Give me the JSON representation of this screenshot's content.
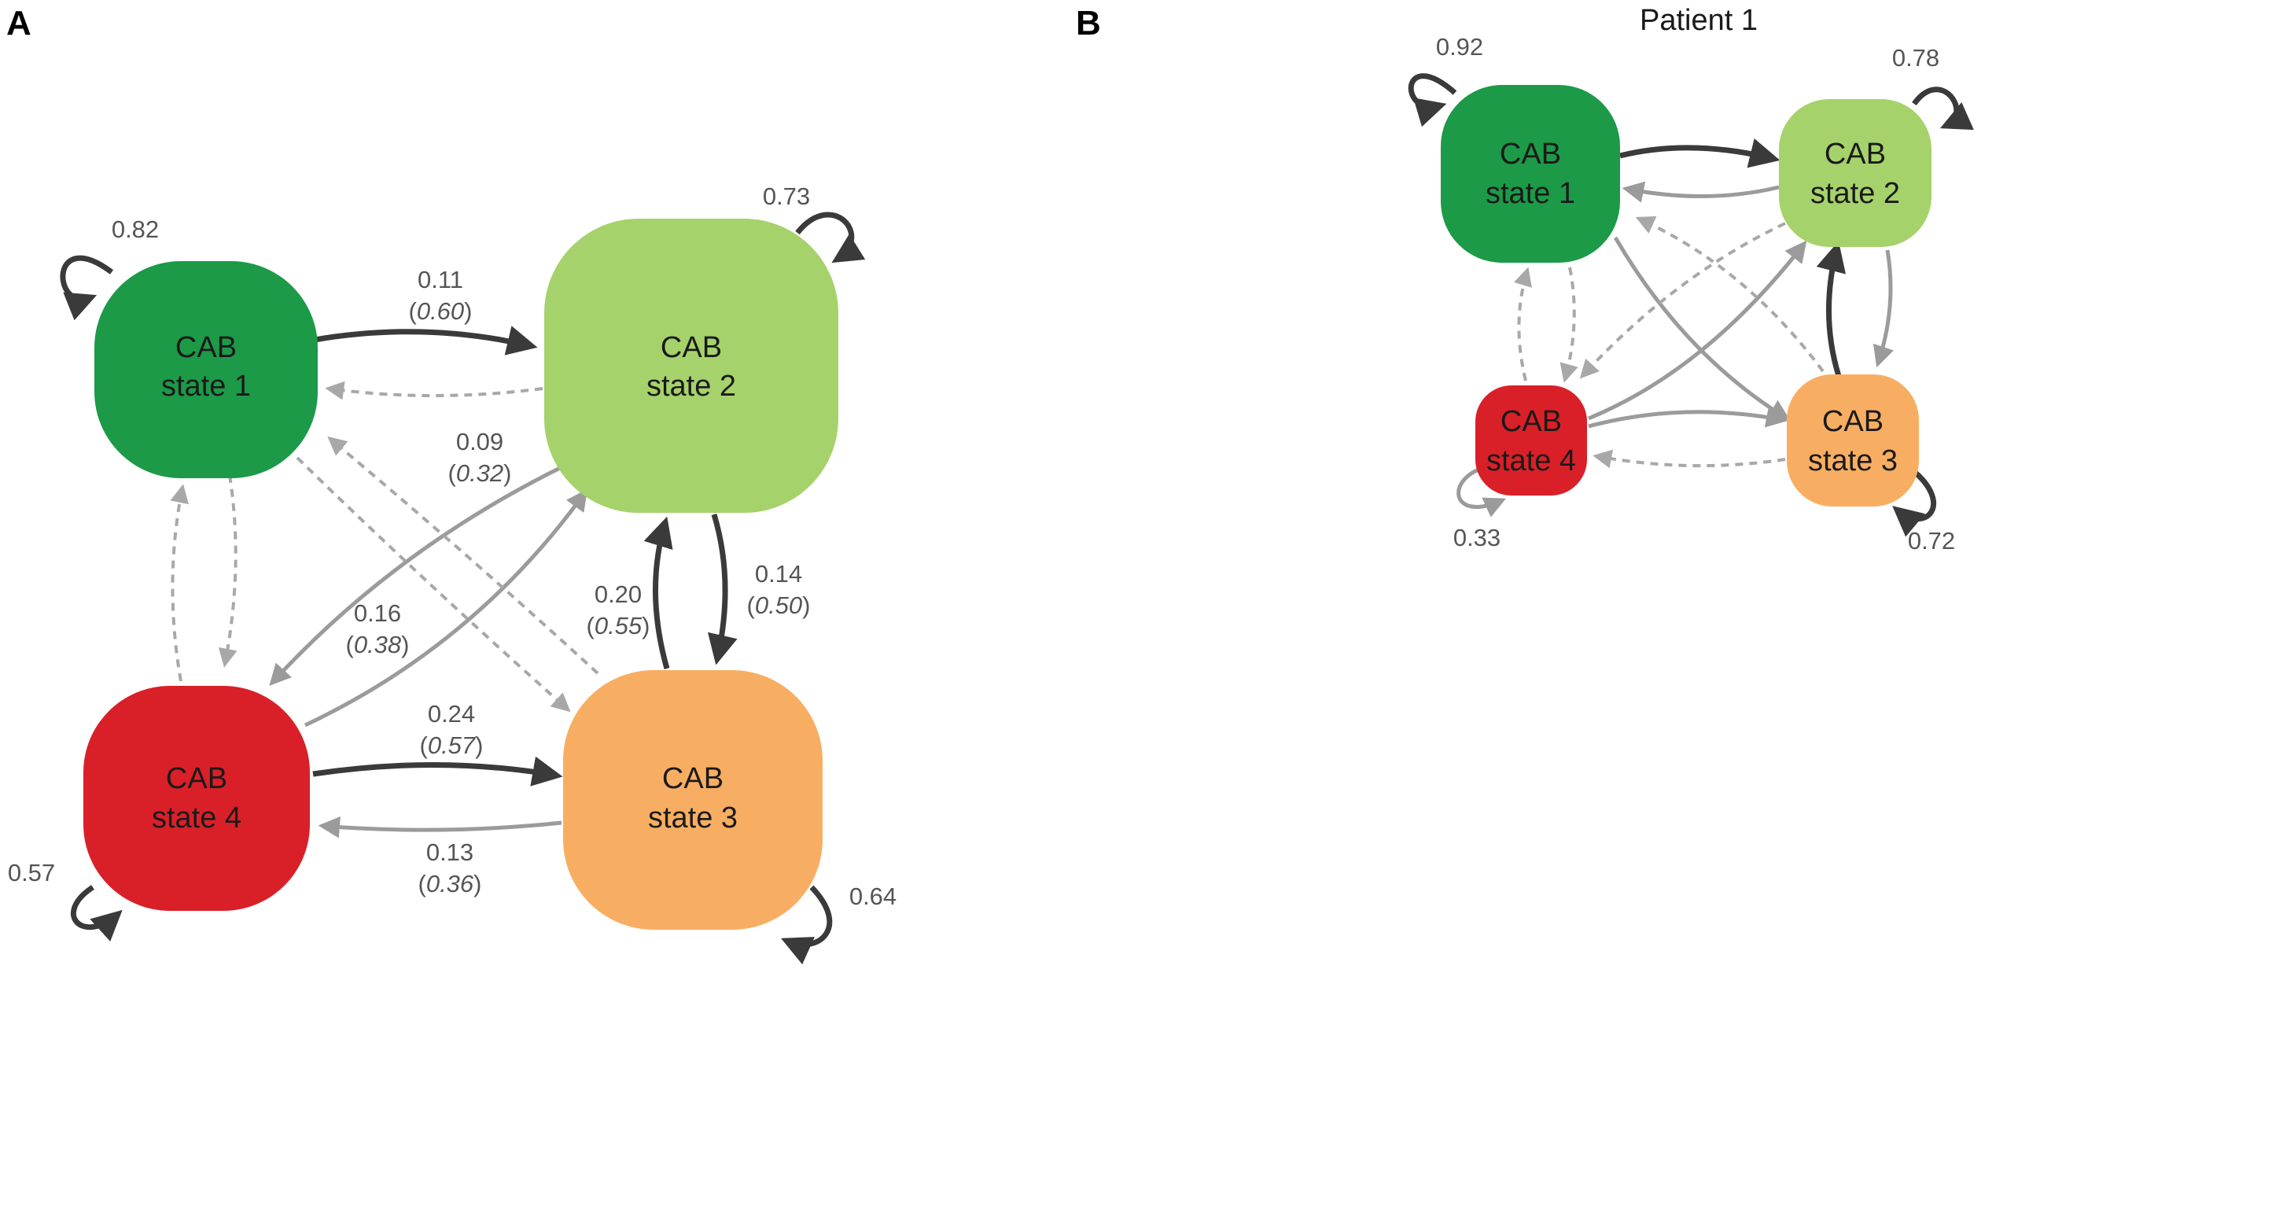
{
  "colors": {
    "state1": "#1c9a47",
    "state2": "#a6d26b",
    "state3": "#f8ae62",
    "state4": "#d92028",
    "edge_strong": "#3a3a3a",
    "edge_weak": "#9b9b9b"
  },
  "panel_a": {
    "letter": "A",
    "nodes": [
      {
        "id": "s1",
        "line1": "CAB",
        "line2": "state 1",
        "color": "state1"
      },
      {
        "id": "s2",
        "line1": "CAB",
        "line2": "state 2",
        "color": "state2"
      },
      {
        "id": "s3",
        "line1": "CAB",
        "line2": "state 3",
        "color": "state3"
      },
      {
        "id": "s4",
        "line1": "CAB",
        "line2": "state 4",
        "color": "state4"
      }
    ],
    "self_loops": [
      {
        "state": "s1",
        "label": "0.82"
      },
      {
        "state": "s2",
        "label": "0.73"
      },
      {
        "state": "s3",
        "label": "0.64"
      },
      {
        "state": "s4",
        "label": "0.57"
      }
    ],
    "edges": [
      {
        "from": "s1",
        "to": "s2",
        "label": "0.11",
        "sublabel": "0.60",
        "style": "strong"
      },
      {
        "from": "s2",
        "to": "s1",
        "style": "dashed"
      },
      {
        "from": "s2",
        "to": "s4",
        "label": "0.09",
        "sublabel": "0.32",
        "style": "weak"
      },
      {
        "from": "s4",
        "to": "s2",
        "label": "0.16",
        "sublabel": "0.38",
        "style": "weak"
      },
      {
        "from": "s2",
        "to": "s3",
        "label": "0.14",
        "sublabel": "0.50",
        "style": "strong"
      },
      {
        "from": "s3",
        "to": "s2",
        "label": "0.20",
        "sublabel": "0.55",
        "style": "strong"
      },
      {
        "from": "s4",
        "to": "s3",
        "label": "0.24",
        "sublabel": "0.57",
        "style": "strong"
      },
      {
        "from": "s3",
        "to": "s4",
        "label": "0.13",
        "sublabel": "0.36",
        "style": "weak"
      },
      {
        "from": "s1",
        "to": "s3",
        "style": "dashed"
      },
      {
        "from": "s3",
        "to": "s1",
        "style": "dashed"
      },
      {
        "from": "s1",
        "to": "s4",
        "style": "dashed"
      },
      {
        "from": "s4",
        "to": "s1",
        "style": "dashed"
      }
    ]
  },
  "panel_b": {
    "letter": "B",
    "title": "Patient 1",
    "nodes": [
      {
        "id": "s1",
        "line1": "CAB",
        "line2": "state 1",
        "color": "state1"
      },
      {
        "id": "s2",
        "line1": "CAB",
        "line2": "state 2",
        "color": "state2"
      },
      {
        "id": "s3",
        "line1": "CAB",
        "line2": "state 3",
        "color": "state3"
      },
      {
        "id": "s4",
        "line1": "CAB",
        "line2": "state 4",
        "color": "state4"
      }
    ],
    "self_loops": [
      {
        "state": "s1",
        "label": "0.92"
      },
      {
        "state": "s2",
        "label": "0.78"
      },
      {
        "state": "s3",
        "label": "0.72"
      },
      {
        "state": "s4",
        "label": "0.33"
      }
    ],
    "edges": [
      {
        "from": "s1",
        "to": "s2",
        "style": "strong"
      },
      {
        "from": "s2",
        "to": "s1",
        "style": "weak"
      },
      {
        "from": "s1",
        "to": "s3",
        "style": "weak"
      },
      {
        "from": "s4",
        "to": "s2",
        "style": "weak"
      },
      {
        "from": "s2",
        "to": "s4",
        "style": "dashed"
      },
      {
        "from": "s3",
        "to": "s1",
        "style": "dashed"
      },
      {
        "from": "s2",
        "to": "s3",
        "style": "weak"
      },
      {
        "from": "s3",
        "to": "s2",
        "style": "strong"
      },
      {
        "from": "s4",
        "to": "s3",
        "style": "weak"
      },
      {
        "from": "s3",
        "to": "s4",
        "style": "dashed"
      },
      {
        "from": "s1",
        "to": "s4",
        "style": "dashed"
      },
      {
        "from": "s4",
        "to": "s1",
        "style": "dashed"
      }
    ]
  }
}
